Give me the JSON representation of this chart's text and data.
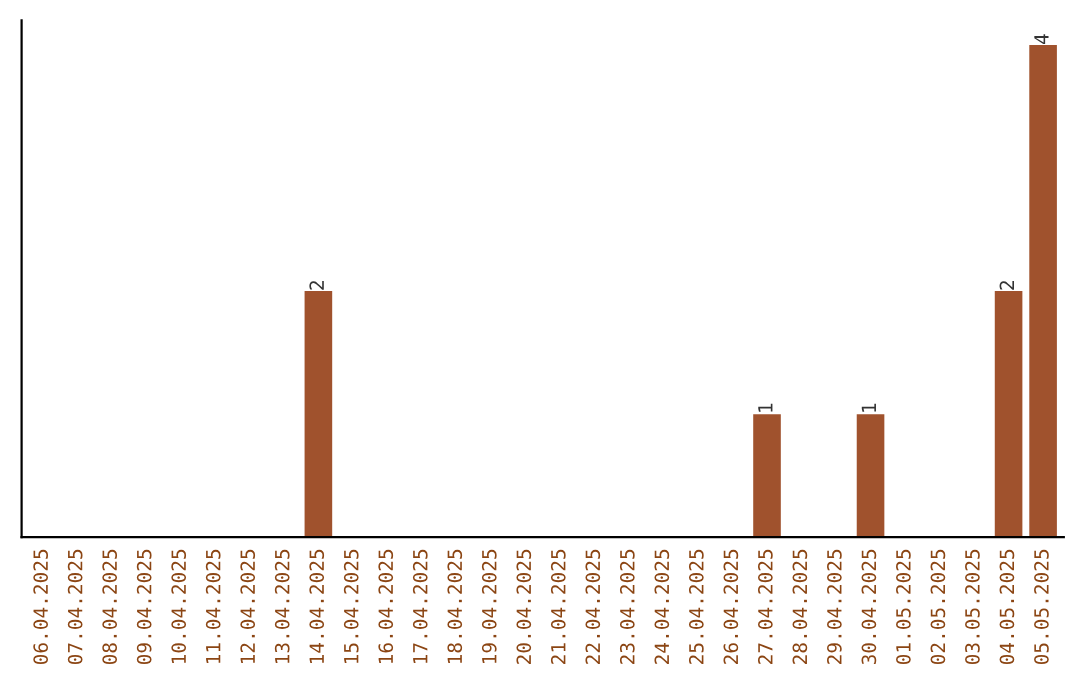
{
  "chart_data": {
    "type": "bar",
    "categories": [
      "06.04.2025",
      "07.04.2025",
      "08.04.2025",
      "09.04.2025",
      "10.04.2025",
      "11.04.2025",
      "12.04.2025",
      "13.04.2025",
      "14.04.2025",
      "15.04.2025",
      "16.04.2025",
      "17.04.2025",
      "18.04.2025",
      "19.04.2025",
      "20.04.2025",
      "21.04.2025",
      "22.04.2025",
      "23.04.2025",
      "24.04.2025",
      "25.04.2025",
      "26.04.2025",
      "27.04.2025",
      "28.04.2025",
      "29.04.2025",
      "30.04.2025",
      "01.05.2025",
      "02.05.2025",
      "03.05.2025",
      "04.05.2025",
      "05.05.2025"
    ],
    "values": [
      0,
      0,
      0,
      0,
      0,
      0,
      0,
      0,
      2,
      0,
      0,
      0,
      0,
      0,
      0,
      0,
      0,
      0,
      0,
      0,
      0,
      1,
      0,
      0,
      1,
      0,
      0,
      0,
      2,
      4
    ],
    "value_labels": [
      null,
      null,
      null,
      null,
      null,
      null,
      null,
      null,
      "2",
      null,
      null,
      null,
      null,
      null,
      null,
      null,
      null,
      null,
      null,
      null,
      null,
      "1",
      null,
      null,
      "1",
      null,
      null,
      null,
      "2",
      "4"
    ],
    "color": "#a0522d",
    "tick_labels": "x",
    "grid": false,
    "legend": false
  }
}
